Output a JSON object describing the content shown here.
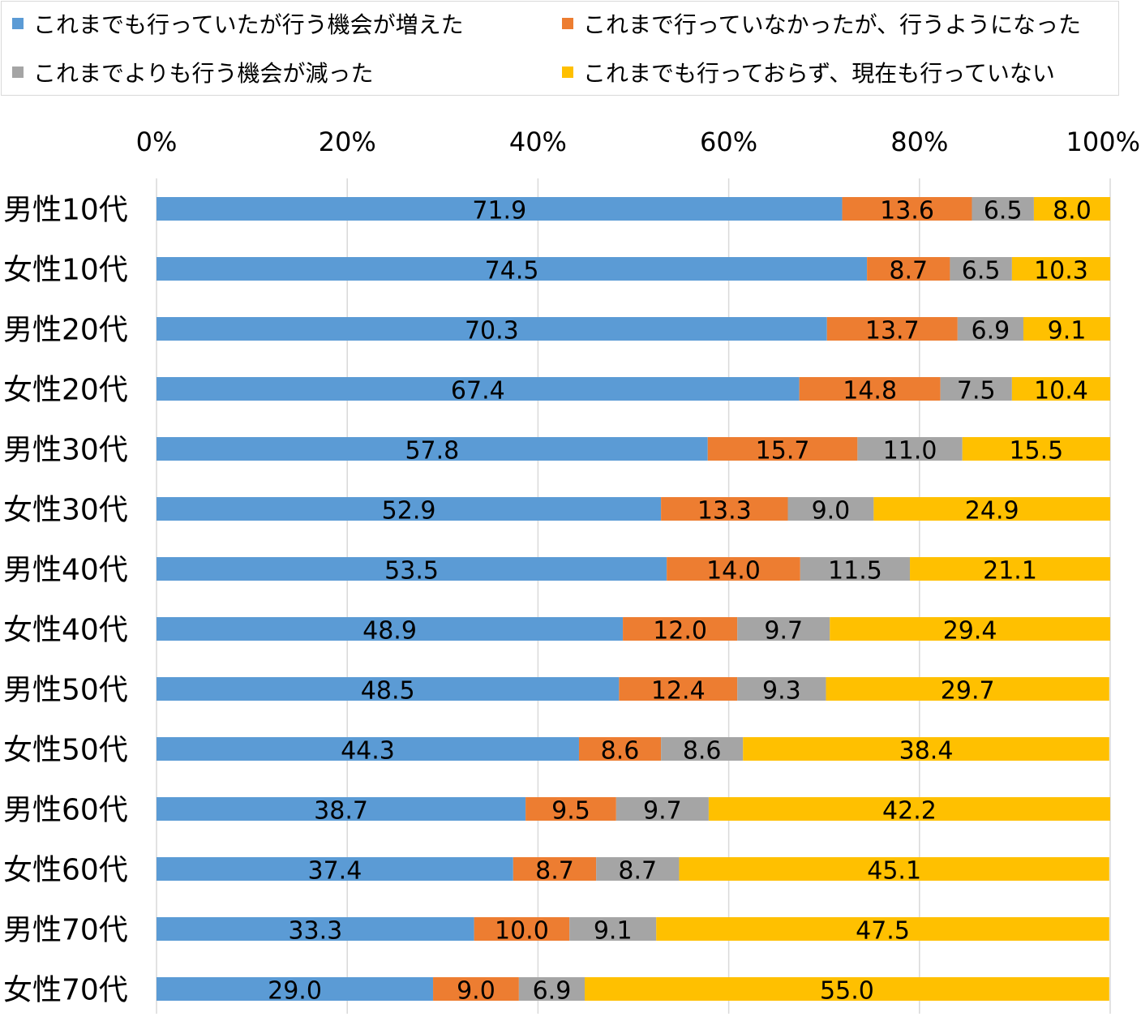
{
  "chart_data": {
    "type": "bar",
    "orientation": "horizontal",
    "stacked": true,
    "percent_stacked": true,
    "categories": [
      "男性10代",
      "女性10代",
      "男性20代",
      "女性20代",
      "男性30代",
      "女性30代",
      "男性40代",
      "女性40代",
      "男性50代",
      "女性50代",
      "男性60代",
      "女性60代",
      "男性70代",
      "女性70代"
    ],
    "series": [
      {
        "name": "これまでも行っていたが行う機会が増えた",
        "color": "#5B9BD5",
        "values": [
          71.9,
          74.5,
          70.3,
          67.4,
          57.8,
          52.9,
          53.5,
          48.9,
          48.5,
          44.3,
          38.7,
          37.4,
          33.3,
          29.0
        ],
        "labels": [
          "71.9",
          "74.5",
          "70.3",
          "67.4",
          "57.8",
          "52.9",
          "53.5",
          "48.9",
          "48.5",
          "44.3",
          "38.7",
          "37.4",
          "33.3",
          "29.0"
        ]
      },
      {
        "name": "これまで行っていなかったが、行うようになった",
        "color": "#ED7D31",
        "values": [
          13.6,
          8.7,
          13.7,
          14.8,
          15.7,
          13.3,
          14.0,
          12.0,
          12.4,
          8.6,
          9.5,
          8.7,
          10.0,
          9.0
        ],
        "labels": [
          "13.6",
          "8.7",
          "13.7",
          "14.8",
          "15.7",
          "13.3",
          "14.0",
          "12.0",
          "12.4",
          "8.6",
          "9.5",
          "8.7",
          "10.0",
          "9.0"
        ]
      },
      {
        "name": "これまでよりも行う機会が減った",
        "color": "#A5A5A5",
        "values": [
          6.5,
          6.5,
          6.9,
          7.5,
          11.0,
          9.0,
          11.5,
          9.7,
          9.3,
          8.6,
          9.7,
          8.7,
          9.1,
          6.9
        ],
        "labels": [
          "6.5",
          "6.5",
          "6.9",
          "7.5",
          "11.0",
          "9.0",
          "11.5",
          "9.7",
          "9.3",
          "8.6",
          "9.7",
          "8.7",
          "9.1",
          "6.9"
        ]
      },
      {
        "name": "これまでも行っておらず、現在も行っていない",
        "color": "#FFC000",
        "values": [
          8.0,
          10.3,
          9.1,
          10.4,
          15.5,
          24.9,
          21.1,
          29.4,
          29.7,
          38.4,
          42.2,
          45.1,
          47.5,
          55.0
        ],
        "labels": [
          "8.0",
          "10.3",
          "9.1",
          "10.4",
          "15.5",
          "24.9",
          "21.1",
          "29.4",
          "29.7",
          "38.4",
          "42.2",
          "45.1",
          "47.5",
          "55.0"
        ]
      }
    ],
    "x_ticks": [
      "0%",
      "20%",
      "40%",
      "60%",
      "80%",
      "100%"
    ],
    "xlim": [
      0,
      100
    ],
    "grid": true,
    "legend_position": "top",
    "title": "",
    "xlabel": "",
    "ylabel": ""
  }
}
